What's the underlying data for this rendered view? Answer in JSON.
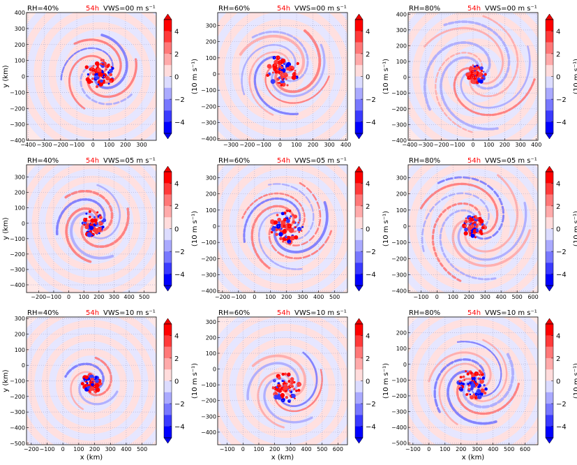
{
  "figure": {
    "time_label": "54h",
    "colors": {
      "positive": "#ff0000",
      "negative": "#0000ff",
      "zero": "#ffffff",
      "time_label": "#ff0000",
      "grid": "#b0b0d0"
    },
    "colorbar": {
      "label": "(10 m s⁻¹)",
      "tick_labels": [
        "4",
        "2",
        "0",
        "−2",
        "−4"
      ],
      "levels": [
        -5,
        -4,
        -3,
        -2,
        -1,
        0,
        1,
        2,
        3,
        4,
        5
      ],
      "extend": "both"
    },
    "x_axis_label": "x (km)",
    "y_axis_label": "y (km)"
  },
  "chart_data": [
    {
      "type": "heatmap",
      "rh": "RH=40%",
      "vws": "VWS=00 m s⁻¹",
      "time": "54h",
      "xlim": [
        -410,
        390
      ],
      "ylim": [
        -400,
        400
      ],
      "xticks": [
        "−400",
        "−300",
        "−200",
        "−100",
        "0",
        "100",
        "200",
        "300"
      ],
      "xtick_values": [
        -400,
        -300,
        -200,
        -100,
        0,
        100,
        200,
        300
      ],
      "yticks": [
        "400",
        "300",
        "200",
        "100",
        "0",
        "−100",
        "−200",
        "−300",
        "−400"
      ],
      "ytick_values": [
        400,
        300,
        200,
        100,
        0,
        -100,
        -200,
        -300,
        -400
      ],
      "center": [
        40,
        20
      ],
      "core_radius": 90,
      "bands": 3,
      "spiral_extent": 220,
      "seed": 3
    },
    {
      "type": "heatmap",
      "rh": "RH=60%",
      "vws": "VWS=00 m s⁻¹",
      "time": "54h",
      "xlim": [
        -380,
        410
      ],
      "ylim": [
        -410,
        380
      ],
      "xticks": [
        "−300",
        "−200",
        "−100",
        "0",
        "100",
        "200",
        "300",
        "400"
      ],
      "xtick_values": [
        -300,
        -200,
        -100,
        0,
        100,
        200,
        300,
        400
      ],
      "yticks": [
        "300",
        "200",
        "100",
        "0",
        "−100",
        "−200",
        "−300",
        "−400"
      ],
      "ytick_values": [
        300,
        200,
        100,
        0,
        -100,
        -200,
        -300,
        -400
      ],
      "center": [
        20,
        20
      ],
      "core_radius": 100,
      "bands": 4,
      "spiral_extent": 260,
      "seed": 7
    },
    {
      "type": "heatmap",
      "rh": "RH=80%",
      "vws": "VWS=00 m s⁻¹",
      "time": "54h",
      "xlim": [
        -410,
        410
      ],
      "ylim": [
        -400,
        410
      ],
      "xticks": [
        "−400",
        "−300",
        "−200",
        "−100",
        "0",
        "100",
        "200",
        "300",
        "400"
      ],
      "xtick_values": [
        -400,
        -300,
        -200,
        -100,
        0,
        100,
        200,
        300,
        400
      ],
      "yticks": [
        "400",
        "300",
        "200",
        "100",
        "0",
        "−100",
        "−200",
        "−300",
        "−400"
      ],
      "ytick_values": [
        400,
        300,
        200,
        100,
        0,
        -100,
        -200,
        -300,
        -400
      ],
      "center": [
        20,
        20
      ],
      "core_radius": 60,
      "bands": 4,
      "spiral_extent": 350,
      "seed": 11
    },
    {
      "type": "heatmap",
      "rh": "RH=40%",
      "vws": "VWS=05 m s⁻¹",
      "time": "54h",
      "xlim": [
        -280,
        580
      ],
      "ylim": [
        -450,
        380
      ],
      "xticks": [
        "−200",
        "−100",
        "0",
        "100",
        "200",
        "300",
        "400",
        "500"
      ],
      "xtick_values": [
        -200,
        -100,
        0,
        100,
        200,
        300,
        400,
        500
      ],
      "yticks": [
        "300",
        "200",
        "100",
        "0",
        "−100",
        "−200",
        "−300",
        "−400"
      ],
      "ytick_values": [
        300,
        200,
        100,
        0,
        -100,
        -200,
        -300,
        -400
      ],
      "center": [
        160,
        0
      ],
      "core_radius": 80,
      "bands": 3,
      "spiral_extent": 230,
      "seed": 5
    },
    {
      "type": "heatmap",
      "rh": "RH=60%",
      "vws": "VWS=05 m s⁻¹",
      "time": "54h",
      "xlim": [
        -230,
        580
      ],
      "ylim": [
        -410,
        380
      ],
      "xticks": [
        "−200",
        "−100",
        "0",
        "100",
        "200",
        "300",
        "400",
        "500"
      ],
      "xtick_values": [
        -200,
        -100,
        0,
        100,
        200,
        300,
        400,
        500
      ],
      "yticks": [
        "300",
        "200",
        "100",
        "0",
        "−100",
        "−200",
        "−300",
        "−400"
      ],
      "ytick_values": [
        300,
        200,
        100,
        0,
        -100,
        -200,
        -300,
        -400
      ],
      "center": [
        200,
        0
      ],
      "core_radius": 100,
      "bands": 4,
      "spiral_extent": 260,
      "seed": 9
    },
    {
      "type": "heatmap",
      "rh": "RH=80%",
      "vws": "VWS=05 m s⁻¹",
      "time": "54h",
      "xlim": [
        -180,
        630
      ],
      "ylim": [
        -410,
        380
      ],
      "xticks": [
        "−100",
        "0",
        "100",
        "200",
        "300",
        "400",
        "500",
        "600"
      ],
      "xtick_values": [
        -100,
        0,
        100,
        200,
        300,
        400,
        500,
        600
      ],
      "yticks": [
        "300",
        "200",
        "100",
        "0",
        "−100",
        "−200",
        "−300",
        "−400"
      ],
      "ytick_values": [
        300,
        200,
        100,
        0,
        -100,
        -200,
        -300,
        -400
      ],
      "center": [
        230,
        0
      ],
      "core_radius": 70,
      "bands": 4,
      "spiral_extent": 330,
      "seed": 13
    },
    {
      "type": "heatmap",
      "rh": "RH=40%",
      "vws": "VWS=10 m s⁻¹",
      "time": "54h",
      "xlim": [
        -230,
        590
      ],
      "ylim": [
        -510,
        310
      ],
      "xticks": [
        "−200",
        "−100",
        "0",
        "100",
        "200",
        "300",
        "400",
        "500"
      ],
      "xtick_values": [
        -200,
        -100,
        0,
        100,
        200,
        300,
        400,
        500
      ],
      "yticks": [
        "300",
        "200",
        "100",
        "0",
        "−100",
        "−200",
        "−300",
        "−400",
        "−500"
      ],
      "ytick_values": [
        300,
        200,
        100,
        0,
        -100,
        -200,
        -300,
        -400,
        -500
      ],
      "center": [
        180,
        -120
      ],
      "core_radius": 60,
      "bands": 2,
      "spiral_extent": 150,
      "seed": 2
    },
    {
      "type": "heatmap",
      "rh": "RH=60%",
      "vws": "VWS=10 m s⁻¹",
      "time": "54h",
      "xlim": [
        -160,
        660
      ],
      "ylim": [
        -480,
        330
      ],
      "xticks": [
        "−100",
        "0",
        "100",
        "200",
        "300",
        "400",
        "500",
        "600"
      ],
      "xtick_values": [
        -100,
        0,
        100,
        200,
        300,
        400,
        500,
        600
      ],
      "yticks": [
        "300",
        "200",
        "100",
        "0",
        "−100",
        "−200",
        "−300",
        "−400"
      ],
      "ytick_values": [
        300,
        200,
        100,
        0,
        -100,
        -200,
        -300,
        -400
      ],
      "center": [
        270,
        -120
      ],
      "core_radius": 90,
      "bands": 3,
      "spiral_extent": 230,
      "seed": 17
    },
    {
      "type": "heatmap",
      "rh": "RH=80%",
      "vws": "VWS=10 m s⁻¹",
      "time": "54h",
      "xlim": [
        -130,
        680
      ],
      "ylim": [
        -510,
        300
      ],
      "xticks": [
        "−100",
        "0",
        "100",
        "200",
        "300",
        "400",
        "500",
        "600"
      ],
      "xtick_values": [
        -100,
        0,
        100,
        200,
        300,
        400,
        500,
        600
      ],
      "yticks": [
        "200",
        "100",
        "0",
        "−100",
        "−200",
        "−300",
        "−400",
        "−500"
      ],
      "ytick_values": [
        200,
        100,
        0,
        -100,
        -200,
        -300,
        -400,
        -500
      ],
      "center": [
        280,
        -120
      ],
      "core_radius": 100,
      "bands": 4,
      "spiral_extent": 260,
      "seed": 21
    }
  ]
}
